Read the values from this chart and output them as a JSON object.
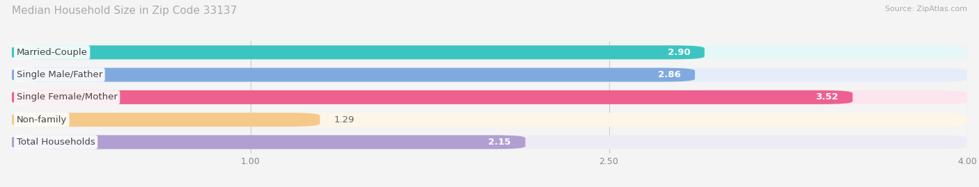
{
  "title": "Median Household Size in Zip Code 33137",
  "source": "Source: ZipAtlas.com",
  "categories": [
    "Married-Couple",
    "Single Male/Father",
    "Single Female/Mother",
    "Non-family",
    "Total Households"
  ],
  "values": [
    2.9,
    2.86,
    3.52,
    1.29,
    2.15
  ],
  "bar_colors": [
    "#3cc5c0",
    "#80aadf",
    "#ed6090",
    "#f5c98a",
    "#b09fd0"
  ],
  "bar_bg_colors": [
    "#e5f7f7",
    "#e5eef8",
    "#fce5ef",
    "#fdf5e8",
    "#eeebf5"
  ],
  "xlim": [
    0,
    4.0
  ],
  "xticks": [
    1.0,
    2.5,
    4.0
  ],
  "bar_height": 0.62,
  "bar_gap": 0.38,
  "label_fontsize": 9.5,
  "value_fontsize": 9.5,
  "title_fontsize": 11,
  "background_color": "#f4f4f4"
}
